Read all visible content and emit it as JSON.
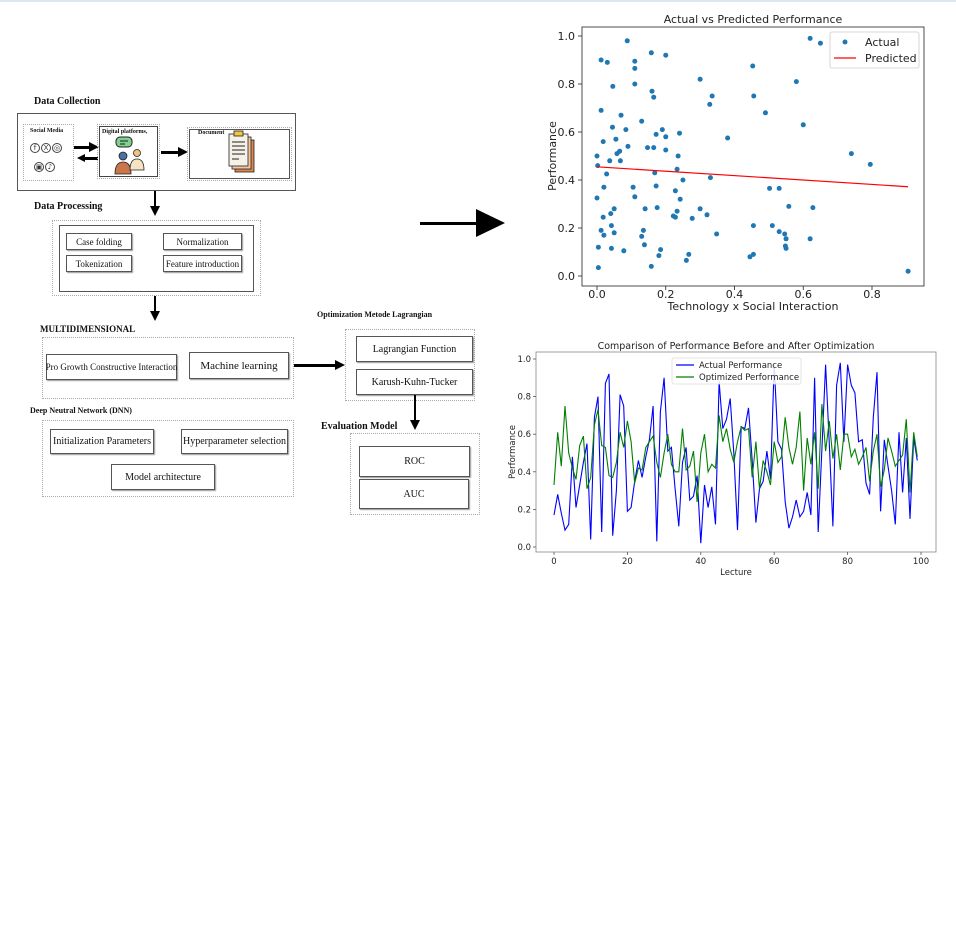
{
  "diagram": {
    "data_collection": {
      "title": "Data Collection",
      "social_media_label": "Social Media",
      "social_icons": [
        "facebook-icon",
        "x-icon",
        "instagram-icon",
        "youtube-icon",
        "tiktok-icon"
      ],
      "social_glyphs": [
        "f",
        "X",
        "◎",
        "▣",
        "♪"
      ],
      "digital_platforms_label": "Digital platforms,",
      "document_label": "Document"
    },
    "data_processing": {
      "title": "Data Processing",
      "items": [
        "Case folding",
        "Normalization",
        "Tokenization",
        "Feature introduction"
      ]
    },
    "multidimensional": {
      "title": "MULTIDIMENSIONAL",
      "items": [
        "Pro Growth Constructive Interaction",
        "Machine learning"
      ]
    },
    "dnn": {
      "title": "Deep Neutral Network (DNN)",
      "items": [
        "Initialization Parameters",
        "Hyperparameter selection",
        "Model architecture"
      ]
    },
    "optimization": {
      "title": "Optimization Metode Lagrangian",
      "items": [
        "Lagrangian Function",
        "Karush-Kuhn-Tucker"
      ]
    },
    "evaluation": {
      "title": "Evaluation Model",
      "items": [
        "ROC",
        "AUC"
      ]
    }
  },
  "chart_data": [
    {
      "type": "scatter",
      "title": "Actual vs Predicted Performance",
      "xlabel": "Technology x Social Interaction",
      "ylabel": "Performance",
      "xlim": [
        -0.04,
        0.96
      ],
      "ylim": [
        -0.03,
        1.03
      ],
      "xticks": [
        "0.0",
        "0.2",
        "0.4",
        "0.6",
        "0.8"
      ],
      "xtick_values": [
        0.0,
        0.2,
        0.4,
        0.6,
        0.8
      ],
      "yticks": [
        "0.0",
        "0.2",
        "0.4",
        "0.6",
        "0.8",
        "1.0"
      ],
      "ytick_values": [
        0.0,
        0.2,
        0.4,
        0.6,
        0.8,
        1.0
      ],
      "grid": false,
      "legend_position": "upper right",
      "legend": [
        {
          "name": "Actual",
          "color": "#1f77b4",
          "marker": "dot"
        },
        {
          "name": "Predicted",
          "color": "#ff0000",
          "marker": "line"
        }
      ],
      "series": [
        {
          "name": "Actual",
          "color": "#1f77b4",
          "points": [
            [
              0.088,
              0.98
            ],
            [
              0.012,
              0.9
            ],
            [
              0.03,
              0.89
            ],
            [
              0.11,
              0.895
            ],
            [
              0.11,
              0.865
            ],
            [
              0.158,
              0.93
            ],
            [
              0.2,
              0.92
            ],
            [
              0.046,
              0.79
            ],
            [
              0.11,
              0.8
            ],
            [
              0.16,
              0.77
            ],
            [
              0.165,
              0.745
            ],
            [
              0.3,
              0.82
            ],
            [
              0.335,
              0.75
            ],
            [
              0.328,
              0.715
            ],
            [
              0.012,
              0.69
            ],
            [
              0.07,
              0.67
            ],
            [
              0.045,
              0.62
            ],
            [
              0.084,
              0.61
            ],
            [
              0.13,
              0.645
            ],
            [
              0.172,
              0.59
            ],
            [
              0.24,
              0.595
            ],
            [
              0.19,
              0.61
            ],
            [
              0.2,
              0.58
            ],
            [
              0.055,
              0.57
            ],
            [
              0.018,
              0.56
            ],
            [
              0.058,
              0.51
            ],
            [
              0.09,
              0.54
            ],
            [
              0.147,
              0.535
            ],
            [
              0.165,
              0.535
            ],
            [
              0.2,
              0.525
            ],
            [
              0.38,
              0.575
            ],
            [
              0.0,
              0.5
            ],
            [
              0.068,
              0.48
            ],
            [
              0.002,
              0.46
            ],
            [
              0.037,
              0.48
            ],
            [
              0.066,
              0.52
            ],
            [
              0.453,
              0.875
            ],
            [
              0.456,
              0.75
            ],
            [
              0.49,
              0.68
            ],
            [
              0.58,
              0.81
            ],
            [
              0.62,
              0.99
            ],
            [
              0.65,
              0.97
            ],
            [
              0.6,
              0.63
            ],
            [
              0.74,
              0.51
            ],
            [
              0.795,
              0.465
            ],
            [
              0.233,
              0.445
            ],
            [
              0.236,
              0.5
            ],
            [
              0.028,
              0.425
            ],
            [
              0.168,
              0.43
            ],
            [
              0.25,
              0.4
            ],
            [
              0.33,
              0.41
            ],
            [
              0.02,
              0.37
            ],
            [
              0.105,
              0.37
            ],
            [
              0.172,
              0.375
            ],
            [
              0.228,
              0.355
            ],
            [
              0.0,
              0.325
            ],
            [
              0.11,
              0.33
            ],
            [
              0.242,
              0.32
            ],
            [
              0.05,
              0.28
            ],
            [
              0.14,
              0.28
            ],
            [
              0.175,
              0.285
            ],
            [
              0.233,
              0.27
            ],
            [
              0.3,
              0.28
            ],
            [
              0.04,
              0.26
            ],
            [
              0.222,
              0.25
            ],
            [
              0.228,
              0.245
            ],
            [
              0.32,
              0.255
            ],
            [
              0.277,
              0.24
            ],
            [
              0.018,
              0.245
            ],
            [
              0.042,
              0.21
            ],
            [
              0.135,
              0.19
            ],
            [
              0.13,
              0.165
            ],
            [
              0.012,
              0.19
            ],
            [
              0.02,
              0.17
            ],
            [
              0.05,
              0.18
            ],
            [
              0.348,
              0.175
            ],
            [
              0.004,
              0.12
            ],
            [
              0.042,
              0.115
            ],
            [
              0.078,
              0.105
            ],
            [
              0.138,
              0.13
            ],
            [
              0.185,
              0.11
            ],
            [
              0.18,
              0.085
            ],
            [
              0.158,
              0.04
            ],
            [
              0.004,
              0.035
            ],
            [
              0.26,
              0.065
            ],
            [
              0.267,
              0.09
            ],
            [
              0.502,
              0.365
            ],
            [
              0.53,
              0.365
            ],
            [
              0.558,
              0.29
            ],
            [
              0.628,
              0.285
            ],
            [
              0.455,
              0.21
            ],
            [
              0.51,
              0.21
            ],
            [
              0.53,
              0.185
            ],
            [
              0.546,
              0.175
            ],
            [
              0.55,
              0.155
            ],
            [
              0.62,
              0.155
            ],
            [
              0.548,
              0.125
            ],
            [
              0.55,
              0.115
            ],
            [
              0.445,
              0.08
            ],
            [
              0.455,
              0.09
            ],
            [
              0.905,
              0.02
            ]
          ]
        },
        {
          "name": "Predicted",
          "color": "#ff0000",
          "line": [
            [
              0.0,
              0.455
            ],
            [
              0.905,
              0.372
            ]
          ]
        }
      ]
    },
    {
      "type": "line",
      "title": "Comparison of Performance Before and After Optimization",
      "xlabel": "Lecture",
      "ylabel": "Performance",
      "xlim": [
        -5,
        104
      ],
      "ylim": [
        -0.03,
        1.03
      ],
      "xticks": [
        "0",
        "20",
        "40",
        "60",
        "80",
        "100"
      ],
      "xtick_values": [
        0,
        20,
        40,
        60,
        80,
        100
      ],
      "yticks": [
        "0.0",
        "0.2",
        "0.4",
        "0.6",
        "0.8",
        "1.0"
      ],
      "ytick_values": [
        0.0,
        0.2,
        0.4,
        0.6,
        0.8,
        1.0
      ],
      "grid": false,
      "legend_position": "upper center",
      "x": [
        0,
        1,
        2,
        3,
        4,
        5,
        6,
        7,
        8,
        9,
        10,
        11,
        12,
        13,
        14,
        15,
        16,
        17,
        18,
        19,
        20,
        21,
        22,
        23,
        24,
        25,
        26,
        27,
        28,
        29,
        30,
        31,
        32,
        33,
        34,
        35,
        36,
        37,
        38,
        39,
        40,
        41,
        42,
        43,
        44,
        45,
        46,
        47,
        48,
        49,
        50,
        51,
        52,
        53,
        54,
        55,
        56,
        57,
        58,
        59,
        60,
        61,
        62,
        63,
        64,
        65,
        66,
        67,
        68,
        69,
        70,
        71,
        72,
        73,
        74,
        75,
        76,
        77,
        78,
        79,
        80,
        81,
        82,
        83,
        84,
        85,
        86,
        87,
        88,
        89,
        90,
        91,
        92,
        93,
        94,
        95,
        96,
        97,
        98,
        99
      ],
      "series": [
        {
          "name": "Actual Performance",
          "color": "#0000ff",
          "values": [
            0.17,
            0.28,
            0.18,
            0.09,
            0.12,
            0.48,
            0.21,
            0.33,
            0.45,
            0.55,
            0.04,
            0.69,
            0.8,
            0.08,
            0.87,
            0.92,
            0.06,
            0.3,
            0.81,
            0.75,
            0.19,
            0.21,
            0.35,
            0.46,
            0.37,
            0.48,
            0.57,
            0.75,
            0.03,
            0.72,
            0.9,
            0.51,
            0.53,
            0.31,
            0.11,
            0.45,
            0.53,
            0.25,
            0.27,
            0.38,
            0.02,
            0.33,
            0.21,
            0.32,
            0.12,
            0.88,
            0.63,
            0.68,
            0.79,
            0.5,
            0.09,
            0.64,
            0.63,
            0.74,
            0.46,
            0.13,
            0.31,
            0.35,
            0.51,
            0.36,
            0.97,
            0.56,
            0.52,
            0.24,
            0.1,
            0.16,
            0.25,
            0.16,
            0.19,
            0.29,
            0.17,
            0.9,
            0.08,
            0.52,
            0.97,
            0.55,
            0.11,
            0.86,
            0.98,
            0.56,
            0.97,
            0.86,
            0.82,
            0.56,
            0.57,
            0.34,
            0.28,
            0.69,
            0.93,
            0.19,
            0.57,
            0.43,
            0.3,
            0.12,
            0.61,
            0.29,
            0.58,
            0.15,
            0.58,
            0.46
          ]
        },
        {
          "name": "Optimized Performance",
          "color": "#008000",
          "values": [
            0.33,
            0.61,
            0.43,
            0.75,
            0.5,
            0.42,
            0.36,
            0.54,
            0.59,
            0.31,
            0.37,
            0.65,
            0.73,
            0.54,
            0.53,
            0.38,
            0.37,
            0.45,
            0.61,
            0.53,
            0.67,
            0.56,
            0.34,
            0.42,
            0.41,
            0.53,
            0.56,
            0.59,
            0.45,
            0.37,
            0.5,
            0.6,
            0.44,
            0.4,
            0.4,
            0.63,
            0.41,
            0.43,
            0.51,
            0.24,
            0.5,
            0.6,
            0.4,
            0.44,
            0.42,
            0.7,
            0.56,
            0.63,
            0.52,
            0.45,
            0.56,
            0.64,
            0.62,
            0.63,
            0.37,
            0.56,
            0.31,
            0.46,
            0.4,
            0.33,
            0.56,
            0.45,
            0.48,
            0.69,
            0.53,
            0.44,
            0.53,
            0.72,
            0.3,
            0.58,
            0.44,
            0.61,
            0.31,
            0.76,
            0.51,
            0.67,
            0.47,
            0.6,
            0.41,
            0.6,
            0.6,
            0.48,
            0.52,
            0.44,
            0.48,
            0.53,
            0.35,
            0.51,
            0.6,
            0.32,
            0.41,
            0.58,
            0.51,
            0.43,
            0.46,
            0.49,
            0.68,
            0.29,
            0.61,
            0.48
          ]
        }
      ],
      "legend": [
        {
          "name": "Actual Performance",
          "color": "#0000ff"
        },
        {
          "name": "Optimized Performance",
          "color": "#008000"
        }
      ]
    }
  ]
}
